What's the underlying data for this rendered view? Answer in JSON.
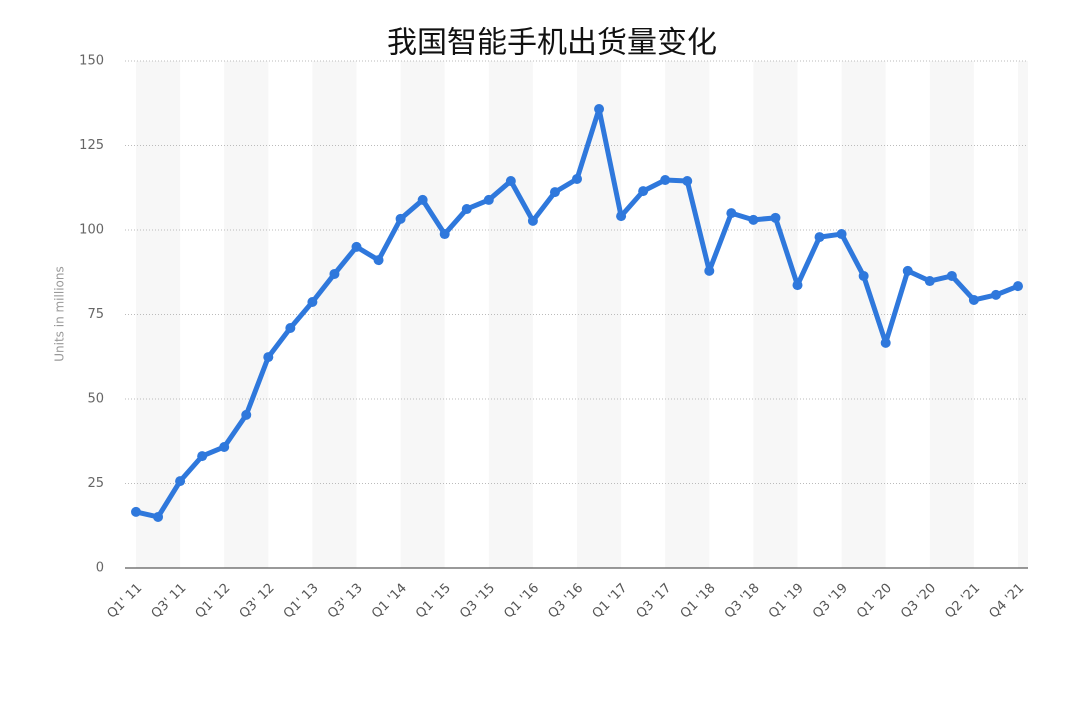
{
  "chart_data": {
    "type": "line",
    "title": "我国智能手机出货量变化",
    "y_label": "Units in millions",
    "categories": [
      "Q1' 11",
      null,
      "Q3' 11",
      null,
      "Q1' 12",
      null,
      "Q3' 12",
      null,
      "Q1' 13",
      null,
      "Q3' 13",
      null,
      "Q1 '14",
      null,
      "Q1 '15",
      null,
      "Q3 '15",
      null,
      "Q1 '16",
      null,
      "Q3 '16",
      null,
      "Q1 '17",
      null,
      "Q3 '17",
      null,
      "Q1 '18",
      null,
      "Q3 '18",
      null,
      "Q1 '19",
      null,
      "Q3 '19",
      null,
      "Q1 '20",
      null,
      "Q3 '20",
      null,
      "Q2 '21",
      null,
      "Q4 '21"
    ],
    "values": [
      16.6,
      15.1,
      25.7,
      33.1,
      35.8,
      45.3,
      62.4,
      71.0,
      78.7,
      87.0,
      95.0,
      91.1,
      103.3,
      108.9,
      98.8,
      106.2,
      108.9,
      114.5,
      102.7,
      111.2,
      115.1,
      135.8,
      104.1,
      111.5,
      114.8,
      114.5,
      87.9,
      105.0,
      103.0,
      103.6,
      83.7,
      97.9,
      98.8,
      86.4,
      66.6,
      87.9,
      84.9,
      86.4,
      79.3,
      80.8,
      83.4
    ],
    "color": "#2f78dc",
    "ylim": [
      0,
      150
    ],
    "yticks": [
      0,
      25,
      50,
      75,
      100,
      125,
      150
    ],
    "grid": true
  }
}
